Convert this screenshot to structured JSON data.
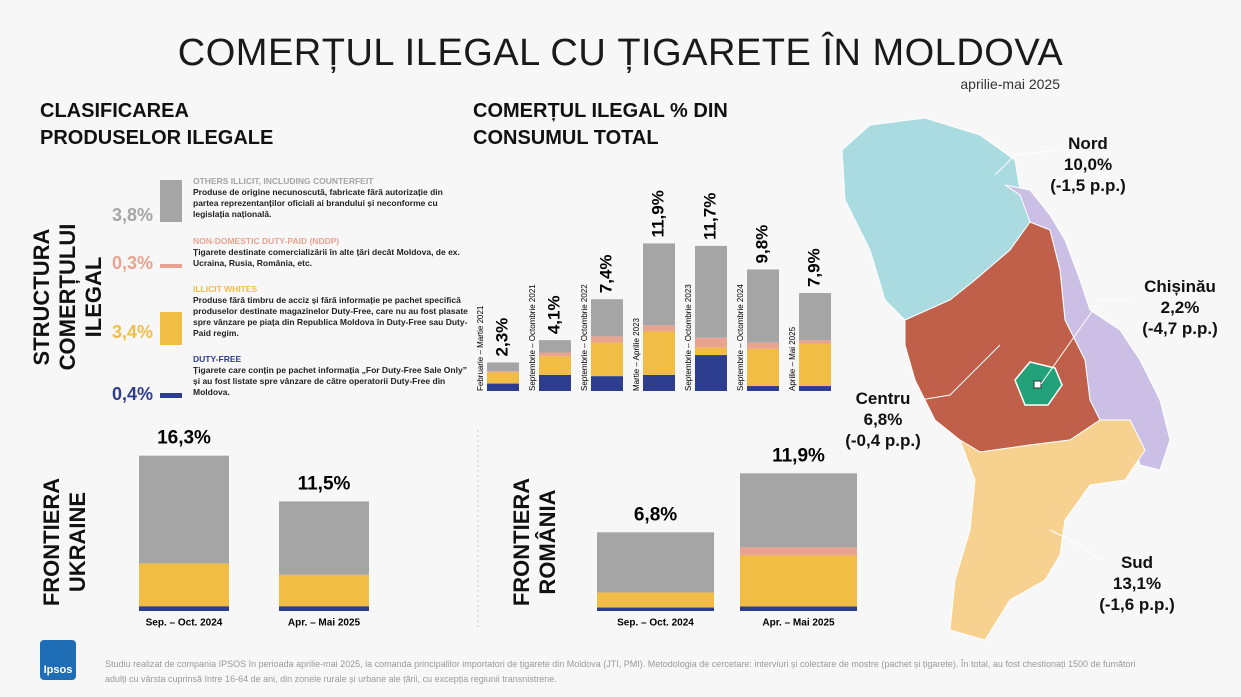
{
  "header": {
    "title": "COMERȚUL ILEGAL CU ȚIGARETE ÎN MOLDOVA",
    "subtitle": "aprilie-mai 2025"
  },
  "classification": {
    "title": "CLASIFICAREA PRODUSELOR ILEGALE",
    "axis_label": "STRUCTURA COMERȚULUI ILEGAL",
    "items": [
      {
        "description": "Produse de origine necunoscută, fabricate fără autorizație din partea reprezentanților oficiali ai brandului și neconforme cu legislația națională.",
        "value_label": "3,8%"
      },
      {
        "description": "Țigarete destinate comercializării în alte țări decât Moldova, de ex. Ucraina, Rusia, România, etc.",
        "value_label": "0,3%"
      },
      {
        "description": "Produse fără timbru de acciz și fără informație pe pachet specifică produselor destinate magazinelor Duty-Free, care nu au fost plasate spre vânzare pe piața din Republica Moldova în Duty-Free sau Duty-Paid regim.",
        "value_label": "3,4%"
      },
      {
        "description": "Țigarete care conțin pe pachet informația „For Duty-Free Sale Only” și au fost listate spre vânzare de către operatorii Duty-Free din Moldova.",
        "value_label": "0,4%"
      }
    ]
  },
  "chart_data": [
    {
      "type": "bar",
      "stacked": true,
      "title": "COMERȚUL ILEGAL % DIN CONSUMUL TOTAL",
      "categories": [
        "Februarie – Martie 2021",
        "Septembrie – Octombrie 2021",
        "Septembrie – Octombrie 2022",
        "Martie – Aprilie 2023",
        "Septembrie – Octombrie 2023",
        "Septembrie – Octombrie 2024",
        "Aprilie – Mai 2025"
      ],
      "series": [
        {
          "name": "DUTY-FREE",
          "color": "#2d3e8f",
          "values": [
            0.6,
            1.3,
            1.2,
            1.3,
            2.9,
            0.4,
            0.4
          ]
        },
        {
          "name": "ILLICIT WHITES",
          "color": "#f2bd45",
          "values": [
            0.9,
            1.5,
            2.7,
            3.5,
            0.6,
            3.0,
            3.4
          ]
        },
        {
          "name": "NON-DOMESTIC DUTY-PAID (NDDP)",
          "color": "#e9a38f",
          "values": [
            0.1,
            0.3,
            0.5,
            0.5,
            0.8,
            0.5,
            0.3
          ]
        },
        {
          "name": "OTHERS ILLICIT, INCLUDING COUNTERFEIT",
          "color": "#a5a5a5",
          "values": [
            0.7,
            1.0,
            3.0,
            6.6,
            7.4,
            5.9,
            3.8
          ]
        }
      ],
      "totals": [
        2.3,
        4.1,
        7.4,
        11.9,
        11.7,
        9.8,
        7.9
      ],
      "value_labels": [
        "2,3%",
        "4,1%",
        "7,4%",
        "11,9%",
        "11,7%",
        "9,8%",
        "7,9%"
      ],
      "ylim": [
        0,
        12.5
      ]
    },
    {
      "type": "bar",
      "stacked": true,
      "title": "FRONTIERA UKRAINE",
      "categories": [
        "Sep. – Oct. 2024",
        "Apr. – Mai 2025"
      ],
      "series": [
        {
          "color": "#2d3e8f",
          "values": [
            0.5,
            0.5
          ]
        },
        {
          "color": "#f2bd45",
          "values": [
            4.5,
            3.3
          ]
        },
        {
          "color": "#e9a38f",
          "values": [
            0.0,
            0.0
          ]
        },
        {
          "color": "#a5a5a5",
          "values": [
            11.3,
            7.7
          ]
        }
      ],
      "totals": [
        16.3,
        11.5
      ],
      "value_labels": [
        "16,3%",
        "11,5%"
      ],
      "ylim": [
        0,
        17
      ]
    },
    {
      "type": "bar",
      "stacked": true,
      "title": "FRONTIERA ROMÂNIA",
      "categories": [
        "Sep. – Oct. 2024",
        "Apr. – Mai 2025"
      ],
      "series": [
        {
          "color": "#2d3e8f",
          "values": [
            0.3,
            0.4
          ]
        },
        {
          "color": "#f2bd45",
          "values": [
            1.3,
            4.4
          ]
        },
        {
          "color": "#e9a38f",
          "values": [
            0.0,
            0.7
          ]
        },
        {
          "color": "#a5a5a5",
          "values": [
            5.2,
            6.4
          ]
        }
      ],
      "totals": [
        6.8,
        11.9
      ],
      "value_labels": [
        "6,8%",
        "11,9%"
      ],
      "ylim": [
        0,
        14
      ]
    }
  ],
  "map": {
    "regions": [
      {
        "name": "Nord",
        "value_label": "10,0%",
        "change_label": "(-1,5 p.p.)"
      },
      {
        "name": "Chișinău",
        "value_label": "2,2%",
        "change_label": "(-4,7 p.p.)"
      },
      {
        "name": "Centru",
        "value_label": "6,8%",
        "change_label": "(-0,4 p.p.)"
      },
      {
        "name": "Sud",
        "value_label": "13,1%",
        "change_label": "(-1,6 p.p.)"
      }
    ]
  },
  "footer": {
    "text": "Studiu realizat de compania IPSOS în perioada aprilie-mai 2025, la comanda principalilor importatori de țigarete din Moldova (JTI, PMI). Metodologia de cercetare: interviuri și colectare de mostre (pachet și țigarete). În total, au fost chestionați 1500 de fumători adulți cu vârsta cuprinsă între 16-64 de ani, din zonele rurale și urbane ale țării, cu excepția regiunii transnistrene.",
    "logo": "Ipsos"
  }
}
